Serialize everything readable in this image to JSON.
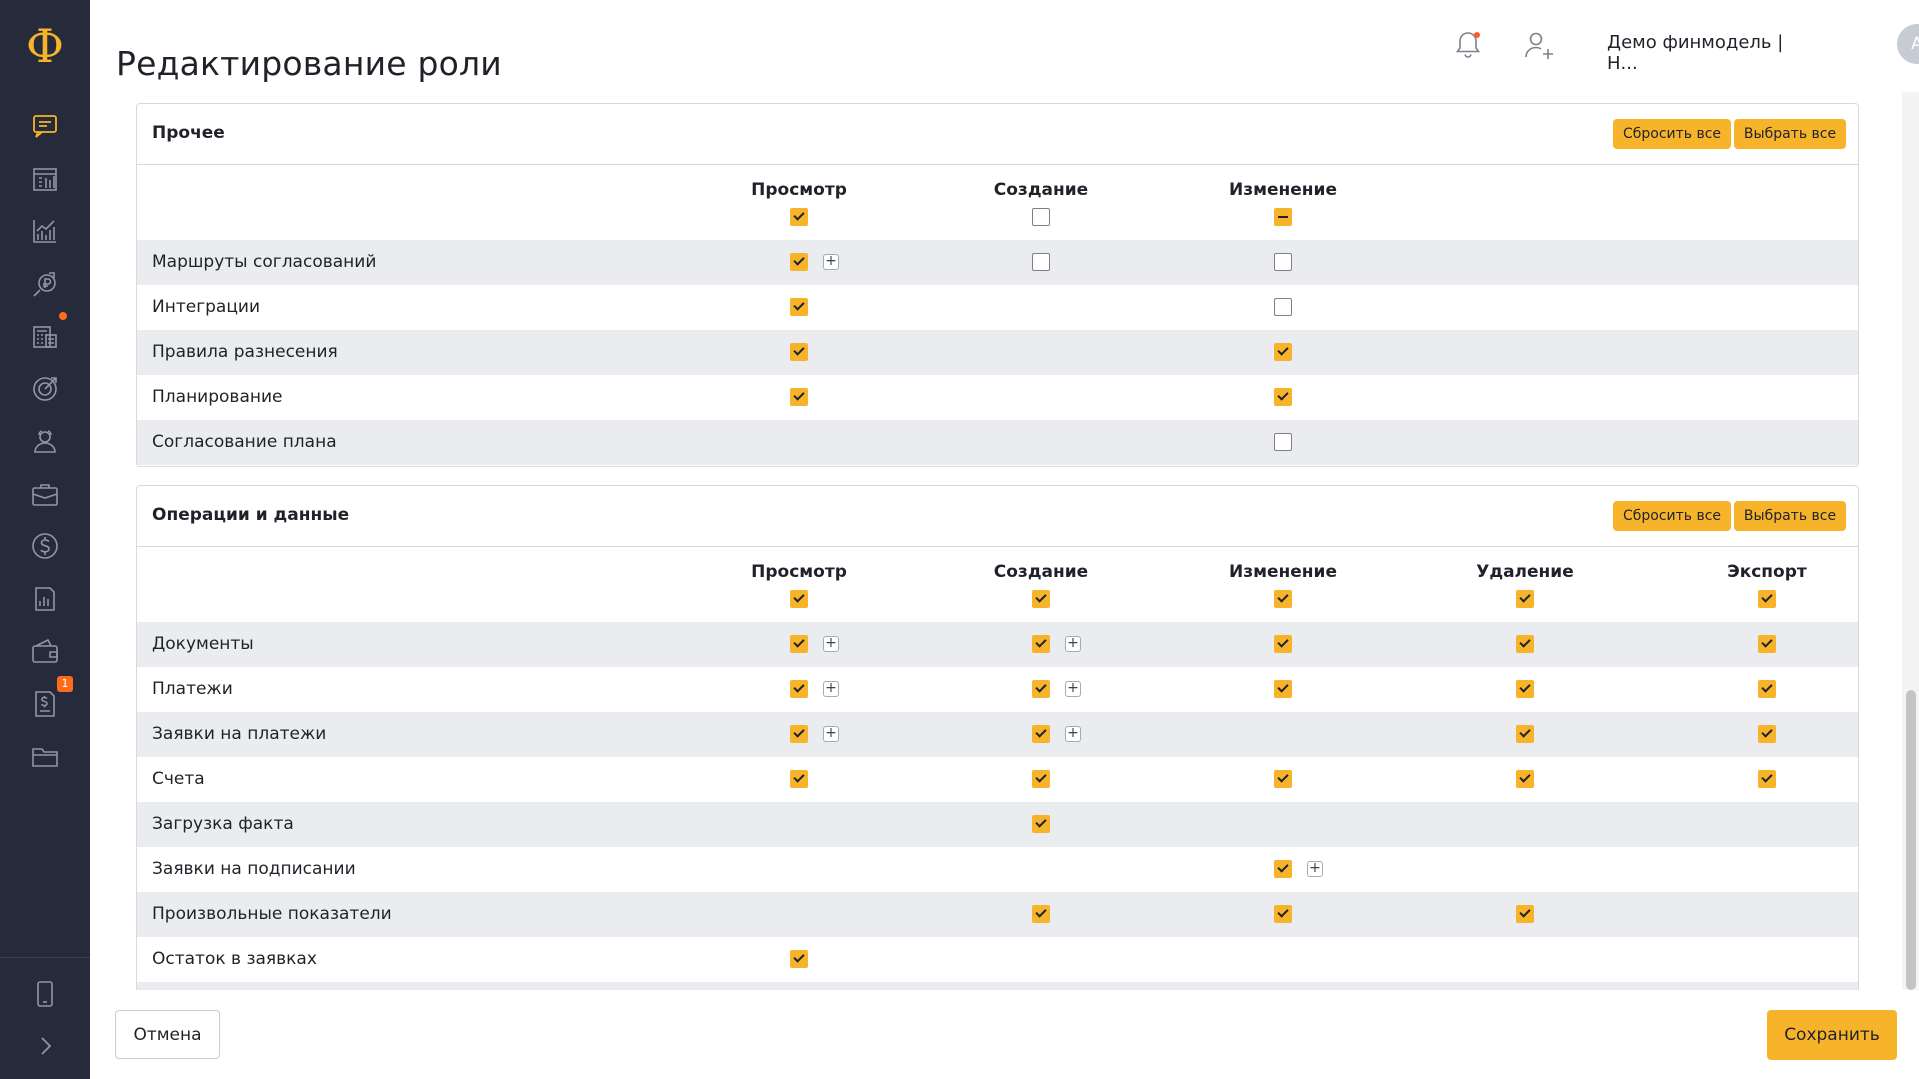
{
  "app": {
    "logo_glyph": "Ф",
    "accent_color": "#f7b42a",
    "sidebar_color": "#252b3a"
  },
  "header": {
    "title": "Редактирование роли",
    "org_name": "Демо финмодель | Н...",
    "avatar_letter": "А",
    "kebab": "⋮"
  },
  "sidebar": {
    "items": [
      {
        "icon": "chat-icon",
        "active": true
      },
      {
        "icon": "calendar-icon"
      },
      {
        "icon": "chart-icon"
      },
      {
        "icon": "ruble-growth-icon"
      },
      {
        "icon": "calculator-icon",
        "dot": true
      },
      {
        "icon": "target-icon"
      },
      {
        "icon": "users-icon"
      },
      {
        "icon": "briefcase-icon"
      },
      {
        "icon": "dollar-icon"
      },
      {
        "icon": "report-icon"
      },
      {
        "icon": "wallet-icon"
      },
      {
        "icon": "invoice-icon",
        "badge": "1"
      },
      {
        "icon": "folder-icon"
      }
    ],
    "bottom": [
      {
        "icon": "mobile-icon"
      },
      {
        "icon": "expand-icon"
      }
    ]
  },
  "panels": [
    {
      "title": "Прочее",
      "reset_label": "Сбросить все",
      "select_label": "Выбрать все",
      "columns": [
        "Просмотр",
        "Создание",
        "Изменение"
      ],
      "header_states": [
        "on",
        "off",
        "partial"
      ],
      "rows": [
        {
          "label": "Маршруты согласований",
          "cells": [
            {
              "s": "on",
              "plus": true
            },
            {
              "s": "off"
            },
            {
              "s": "off"
            }
          ]
        },
        {
          "label": "Интеграции",
          "cells": [
            {
              "s": "on"
            },
            null,
            {
              "s": "off"
            }
          ]
        },
        {
          "label": "Правила разнесения",
          "cells": [
            {
              "s": "on"
            },
            null,
            {
              "s": "on"
            }
          ]
        },
        {
          "label": "Планирование",
          "cells": [
            {
              "s": "on"
            },
            null,
            {
              "s": "on"
            }
          ]
        },
        {
          "label": "Согласование плана",
          "cells": [
            null,
            null,
            {
              "s": "off"
            }
          ]
        }
      ]
    },
    {
      "title": "Операции и данные",
      "reset_label": "Сбросить все",
      "select_label": "Выбрать все",
      "columns": [
        "Просмотр",
        "Создание",
        "Изменение",
        "Удаление",
        "Экспорт"
      ],
      "header_states": [
        "on",
        "on",
        "on",
        "on",
        "on"
      ],
      "rows": [
        {
          "label": "Документы",
          "cells": [
            {
              "s": "on",
              "plus": true
            },
            {
              "s": "on",
              "plus": true
            },
            {
              "s": "on"
            },
            {
              "s": "on"
            },
            {
              "s": "on"
            }
          ]
        },
        {
          "label": "Платежи",
          "cells": [
            {
              "s": "on",
              "plus": true
            },
            {
              "s": "on",
              "plus": true
            },
            {
              "s": "on"
            },
            {
              "s": "on"
            },
            {
              "s": "on"
            }
          ]
        },
        {
          "label": "Заявки на платежи",
          "cells": [
            {
              "s": "on",
              "plus": true
            },
            {
              "s": "on",
              "plus": true
            },
            null,
            {
              "s": "on"
            },
            {
              "s": "on"
            }
          ]
        },
        {
          "label": "Счета",
          "cells": [
            {
              "s": "on"
            },
            {
              "s": "on"
            },
            {
              "s": "on"
            },
            {
              "s": "on"
            },
            {
              "s": "on"
            }
          ]
        },
        {
          "label": "Загрузка факта",
          "cells": [
            null,
            {
              "s": "on"
            },
            null,
            null,
            null
          ]
        },
        {
          "label": "Заявки на подписании",
          "cells": [
            null,
            null,
            {
              "s": "on",
              "plus": true
            },
            null,
            null
          ]
        },
        {
          "label": "Произвольные показатели",
          "cells": [
            null,
            {
              "s": "on"
            },
            {
              "s": "on"
            },
            {
              "s": "on"
            },
            null
          ]
        },
        {
          "label": "Остаток в заявках",
          "cells": [
            {
              "s": "on"
            },
            null,
            null,
            null,
            null
          ]
        },
        {
          "label": "",
          "cells": [
            null,
            null,
            null,
            null,
            null
          ]
        }
      ]
    }
  ],
  "footer": {
    "cancel_label": "Отмена",
    "save_label": "Сохранить"
  }
}
